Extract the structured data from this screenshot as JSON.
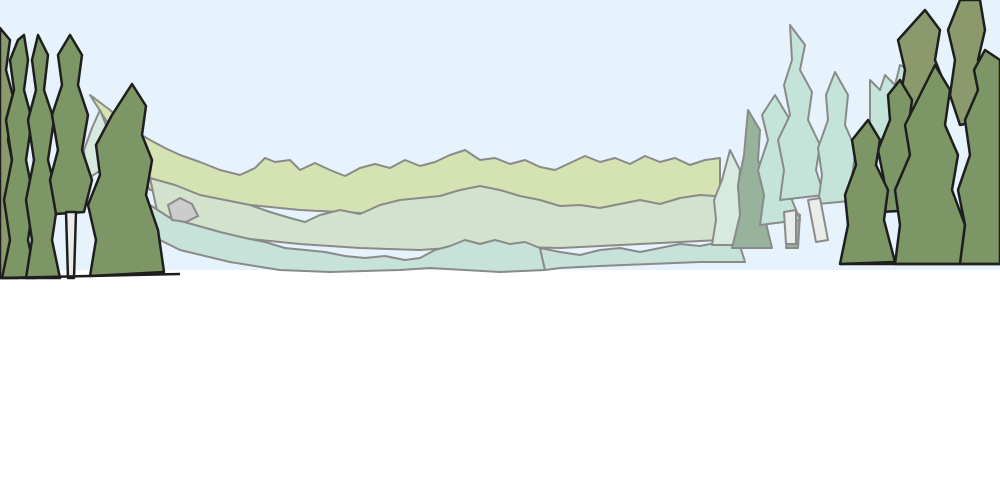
{
  "scene": {
    "kind": "forest-valley-backdrop",
    "colors": {
      "sky": "#e6f3fc",
      "ground": "#ffffff",
      "far_hills": "#d5e3b3",
      "mid_forest": "#d3e2cc",
      "near_forest": "#c7e2d8",
      "bush": "#cdcccd",
      "dark_tree": "#7c9765",
      "dark_tree_alt": "#8a9a6d",
      "mid_tree": "#98b39c",
      "light_tree": "#c4e4d9",
      "pale_tree": "#d7eadf",
      "dark_outline": "#1e1e1e",
      "soft_outline": "#8a8a8a",
      "trunk": "#e9ede9"
    },
    "elements": [
      {
        "name": "sky",
        "icon": "sky-backdrop"
      },
      {
        "name": "far-hills",
        "icon": "rolling-hills"
      },
      {
        "name": "mid-forest-band",
        "icon": "treeline"
      },
      {
        "name": "near-forest-band",
        "icon": "treeline"
      },
      {
        "name": "left-conifer-cluster",
        "icon": "pine-tree-cluster"
      },
      {
        "name": "right-pale-conifers",
        "icon": "pine-tree-cluster"
      },
      {
        "name": "right-conifer-cluster",
        "icon": "pine-tree-cluster"
      }
    ]
  }
}
